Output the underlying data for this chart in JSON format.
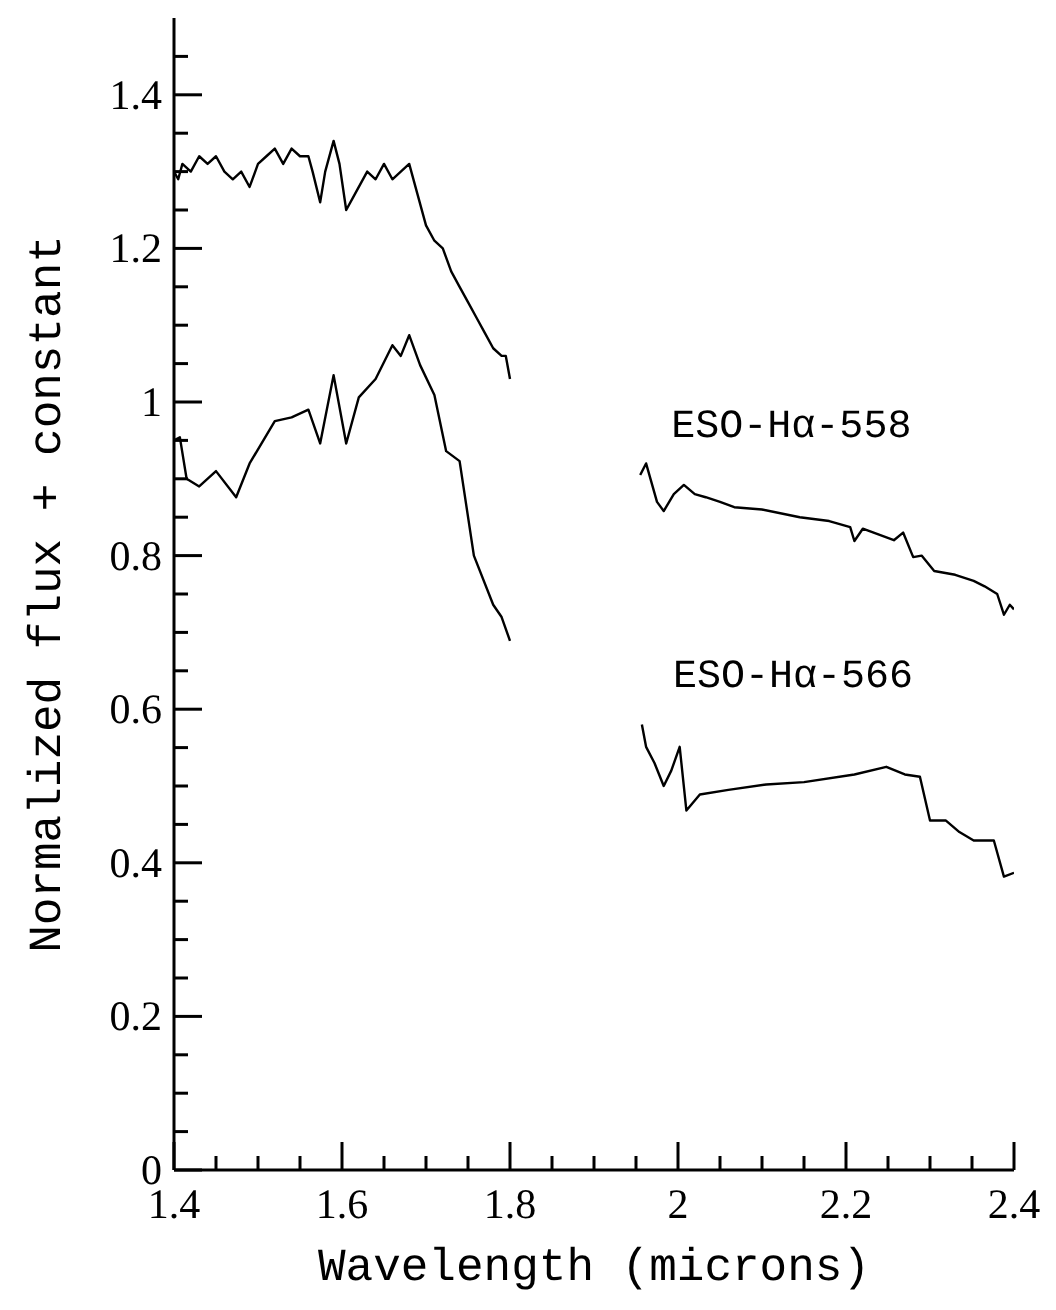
{
  "chart_data": {
    "type": "line",
    "xlabel": "Wavelength (microns)",
    "ylabel": "Normalized flux + constant",
    "xlim": [
      1.4,
      2.4
    ],
    "ylim": [
      0,
      1.5
    ],
    "xticks": [
      1.4,
      {
        "value": 1.45,
        "label": null
      },
      {
        "value": 1.5,
        "label": null
      },
      {
        "value": 1.55,
        "label": null
      },
      1.6,
      {
        "value": 1.65,
        "label": null
      },
      {
        "value": 1.7,
        "label": null
      },
      {
        "value": 1.75,
        "label": null
      },
      1.8,
      {
        "value": 1.85,
        "label": null
      },
      {
        "value": 1.9,
        "label": null
      },
      {
        "value": 1.95,
        "label": null
      },
      2,
      {
        "value": 2.05,
        "label": null
      },
      {
        "value": 2.1,
        "label": null
      },
      {
        "value": 2.15,
        "label": null
      },
      2.2,
      {
        "value": 2.25,
        "label": null
      },
      {
        "value": 2.3,
        "label": null
      },
      {
        "value": 2.35,
        "label": null
      },
      2.4
    ],
    "yticks": [
      0,
      {
        "value": 0.05,
        "label": null
      },
      {
        "value": 0.1,
        "label": null
      },
      {
        "value": 0.15,
        "label": null
      },
      0.2,
      {
        "value": 0.25,
        "label": null
      },
      {
        "value": 0.3,
        "label": null
      },
      {
        "value": 0.35,
        "label": null
      },
      0.4,
      {
        "value": 0.45,
        "label": null
      },
      {
        "value": 0.5,
        "label": null
      },
      {
        "value": 0.55,
        "label": null
      },
      0.6,
      {
        "value": 0.65,
        "label": null
      },
      {
        "value": 0.7,
        "label": null
      },
      {
        "value": 0.75,
        "label": null
      },
      0.8,
      {
        "value": 0.85,
        "label": null
      },
      {
        "value": 0.9,
        "label": null
      },
      {
        "value": 0.95,
        "label": null
      },
      1,
      {
        "value": 1.05,
        "label": null
      },
      {
        "value": 1.1,
        "label": null
      },
      {
        "value": 1.15,
        "label": null
      },
      1.2,
      {
        "value": 1.25,
        "label": null
      },
      {
        "value": 1.3,
        "label": null
      },
      {
        "value": 1.35,
        "label": null
      },
      1.4,
      {
        "value": 1.45,
        "label": null
      }
    ],
    "grid": false,
    "legend": false,
    "marker": "none",
    "line_style": "solid",
    "series": [
      {
        "name": "ESO-Hα-558",
        "color": "#000000",
        "x": [
          1.4,
          1.405,
          1.41,
          1.42,
          1.43,
          1.44,
          1.45,
          1.46,
          1.47,
          1.48,
          1.49,
          1.5,
          1.51,
          1.52,
          1.53,
          1.54,
          1.55,
          1.56,
          1.565,
          1.574,
          1.58,
          1.59,
          1.597,
          1.605,
          1.615,
          1.63,
          1.64,
          1.65,
          1.66,
          1.67,
          1.68,
          1.69,
          1.7,
          1.71,
          1.72,
          1.73,
          1.74,
          1.75,
          1.76,
          1.77,
          1.78,
          1.79,
          1.795,
          1.8,
          1.87,
          1.955,
          1.962,
          1.975,
          1.983,
          1.995,
          2.007,
          2.02,
          2.033,
          2.05,
          2.067,
          2.1,
          2.145,
          2.18,
          2.205,
          2.21,
          2.22,
          2.257,
          2.268,
          2.28,
          2.29,
          2.305,
          2.33,
          2.352,
          2.365,
          2.38,
          2.388,
          2.395,
          2.4
        ],
        "values": [
          1.3,
          1.29,
          1.31,
          1.3,
          1.32,
          1.31,
          1.32,
          1.3,
          1.29,
          1.3,
          1.28,
          1.31,
          1.32,
          1.33,
          1.31,
          1.33,
          1.32,
          1.32,
          1.3,
          1.26,
          1.3,
          1.34,
          1.31,
          1.25,
          1.27,
          1.3,
          1.29,
          1.31,
          1.29,
          1.3,
          1.31,
          1.27,
          1.23,
          1.21,
          1.2,
          1.17,
          1.15,
          1.13,
          1.11,
          1.09,
          1.07,
          1.06,
          1.06,
          1.03,
          null,
          0.905,
          0.92,
          0.87,
          0.858,
          0.88,
          0.892,
          0.88,
          0.876,
          0.87,
          0.863,
          0.86,
          0.85,
          0.845,
          0.837,
          0.819,
          0.835,
          0.82,
          0.83,
          0.798,
          0.8,
          0.78,
          0.775,
          0.767,
          0.76,
          0.75,
          0.723,
          0.736,
          0.73
        ]
      },
      {
        "name": "ESO-Hα-566",
        "color": "#000000",
        "x": [
          1.4,
          1.407,
          1.415,
          1.43,
          1.45,
          1.474,
          1.49,
          1.52,
          1.54,
          1.56,
          1.574,
          1.59,
          1.605,
          1.62,
          1.64,
          1.66,
          1.67,
          1.68,
          1.693,
          1.71,
          1.724,
          1.74,
          1.757,
          1.78,
          1.79,
          1.8,
          1.87,
          1.957,
          1.962,
          1.972,
          1.983,
          1.992,
          2.002,
          2.01,
          2.026,
          2.06,
          2.105,
          2.15,
          2.21,
          2.248,
          2.27,
          2.288,
          2.3,
          2.319,
          2.335,
          2.352,
          2.376,
          2.388,
          2.4
        ],
        "values": [
          0.95,
          0.954,
          0.9,
          0.89,
          0.91,
          0.876,
          0.92,
          0.975,
          0.98,
          0.99,
          0.946,
          1.035,
          0.946,
          1.006,
          1.03,
          1.074,
          1.06,
          1.087,
          1.048,
          1.009,
          0.936,
          0.923,
          0.8,
          0.736,
          0.72,
          0.689,
          null,
          0.58,
          0.551,
          0.53,
          0.5,
          0.52,
          0.551,
          0.468,
          0.489,
          0.495,
          0.502,
          0.505,
          0.515,
          0.525,
          0.515,
          0.512,
          0.455,
          0.455,
          0.44,
          0.429,
          0.429,
          0.382,
          0.387
        ]
      }
    ]
  }
}
